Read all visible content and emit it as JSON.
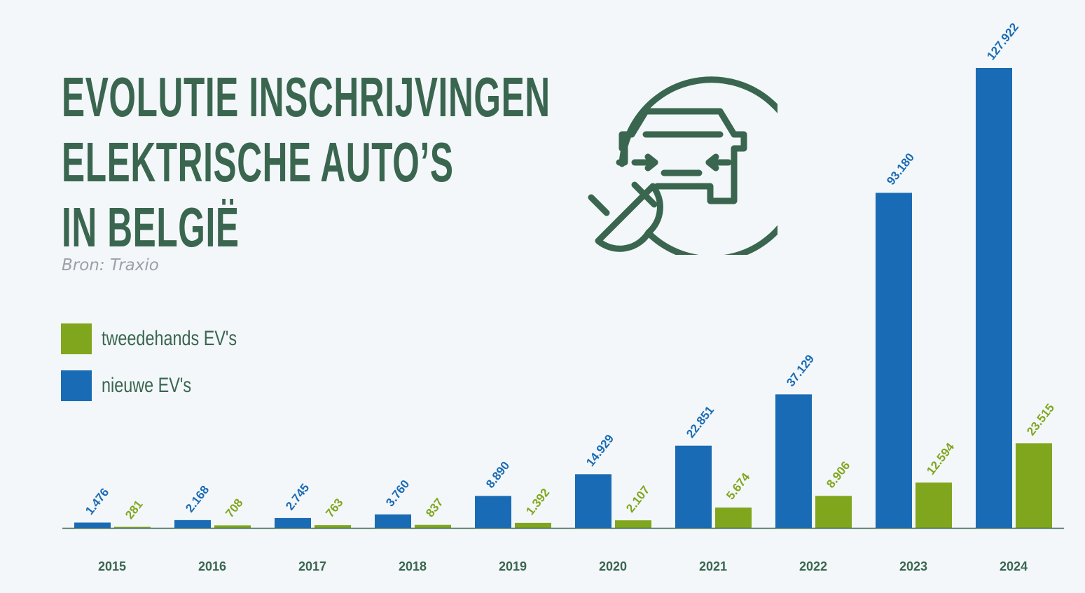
{
  "title": {
    "line1": "EVOLUTIE INSCHRIJVINGEN",
    "line2": "ELEKTRISCHE AUTO’S",
    "line3": "IN BELGIË"
  },
  "source": "Bron: Traxio",
  "icon": "ev-charging-car-icon",
  "colors": {
    "text": "#3a6650",
    "new": "#1a6bb5",
    "used": "#80a61e",
    "source": "#9aa1a6",
    "background": "#f3f7f9"
  },
  "legend": {
    "used_label": "tweedehands EV's",
    "new_label": "nieuwe EV's"
  },
  "chart_data": {
    "type": "bar",
    "categories": [
      "2015",
      "2016",
      "2017",
      "2018",
      "2019",
      "2020",
      "2021",
      "2022",
      "2023",
      "2024"
    ],
    "series": [
      {
        "name": "nieuwe EV's",
        "values": [
          1476,
          2168,
          2745,
          3760,
          8890,
          14929,
          22851,
          37129,
          93180,
          127922
        ],
        "labels": [
          "1.476",
          "2.168",
          "2.745",
          "3.760",
          "8.890",
          "14.929",
          "22.851",
          "37.129",
          "93.180",
          "127.922"
        ]
      },
      {
        "name": "tweedehands EV's",
        "values": [
          281,
          708,
          763,
          837,
          1392,
          2107,
          5674,
          8906,
          12594,
          23515
        ],
        "labels": [
          "281",
          "708",
          "763",
          "837",
          "1.392",
          "2.107",
          "5.674",
          "8.906",
          "12.594",
          "23.515"
        ]
      }
    ],
    "ylim": [
      0,
      127922
    ],
    "grid": false,
    "legend_position": "left"
  }
}
